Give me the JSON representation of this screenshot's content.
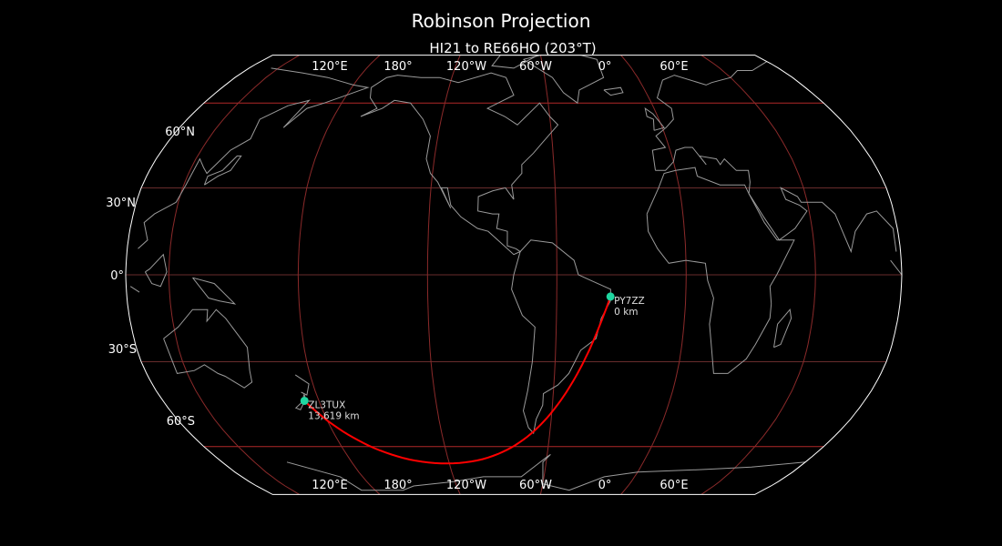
{
  "title": "Robinson Projection",
  "subtitle": "HI21 to RE66HO (203°T)",
  "projection": "robinson",
  "colors": {
    "background": "#000000",
    "coastline": "#9a9a9a",
    "meridian": "#8b2a2a",
    "parallel": "#8b3a3a",
    "path": "#ff0000",
    "marker": "#1fd6a0",
    "border": "#ffffff"
  },
  "lon_labels_top": [
    "120°E",
    "180°",
    "120°W",
    "60°W",
    "0°",
    "60°E"
  ],
  "lon_labels_bottom": [
    "120°E",
    "180°",
    "120°W",
    "60°W",
    "0°",
    "60°E"
  ],
  "lat_labels": [
    "60°N",
    "30°N",
    "0°",
    "30°S",
    "60°S"
  ],
  "stations": [
    {
      "call": "PY7ZZ",
      "distance": "0 km",
      "lat": -7.5,
      "lon": -35
    },
    {
      "call": "ZL3TUX",
      "distance": "13,619 km",
      "lat": -43.5,
      "lon": 172.6
    }
  ]
}
